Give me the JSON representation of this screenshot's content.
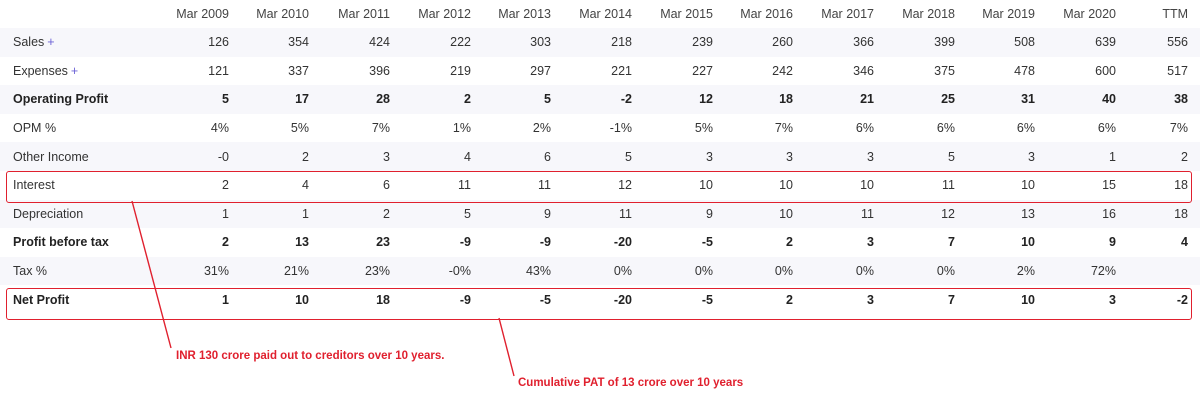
{
  "table": {
    "columns": [
      "",
      "Mar 2009",
      "Mar 2010",
      "Mar 2011",
      "Mar 2012",
      "Mar 2013",
      "Mar 2014",
      "Mar 2015",
      "Mar 2016",
      "Mar 2017",
      "Mar 2018",
      "Mar 2019",
      "Mar 2020",
      "TTM"
    ],
    "rows": [
      {
        "label": "Sales",
        "expandable": true,
        "bold": false,
        "values": [
          "126",
          "354",
          "424",
          "222",
          "303",
          "218",
          "239",
          "260",
          "366",
          "399",
          "508",
          "639",
          "556"
        ]
      },
      {
        "label": "Expenses",
        "expandable": true,
        "bold": false,
        "values": [
          "121",
          "337",
          "396",
          "219",
          "297",
          "221",
          "227",
          "242",
          "346",
          "375",
          "478",
          "600",
          "517"
        ]
      },
      {
        "label": "Operating Profit",
        "expandable": false,
        "bold": true,
        "values": [
          "5",
          "17",
          "28",
          "2",
          "5",
          "-2",
          "12",
          "18",
          "21",
          "25",
          "31",
          "40",
          "38"
        ]
      },
      {
        "label": "OPM %",
        "expandable": false,
        "bold": false,
        "values": [
          "4%",
          "5%",
          "7%",
          "1%",
          "2%",
          "-1%",
          "5%",
          "7%",
          "6%",
          "6%",
          "6%",
          "6%",
          "7%"
        ]
      },
      {
        "label": "Other Income",
        "expandable": false,
        "bold": false,
        "values": [
          "-0",
          "2",
          "3",
          "4",
          "6",
          "5",
          "3",
          "3",
          "3",
          "5",
          "3",
          "1",
          "2"
        ]
      },
      {
        "label": "Interest",
        "expandable": false,
        "bold": false,
        "values": [
          "2",
          "4",
          "6",
          "11",
          "11",
          "12",
          "10",
          "10",
          "10",
          "11",
          "10",
          "15",
          "18"
        ]
      },
      {
        "label": "Depreciation",
        "expandable": false,
        "bold": false,
        "values": [
          "1",
          "1",
          "2",
          "5",
          "9",
          "11",
          "9",
          "10",
          "11",
          "12",
          "13",
          "16",
          "18"
        ]
      },
      {
        "label": "Profit before tax",
        "expandable": false,
        "bold": true,
        "values": [
          "2",
          "13",
          "23",
          "-9",
          "-9",
          "-20",
          "-5",
          "2",
          "3",
          "7",
          "10",
          "9",
          "4"
        ]
      },
      {
        "label": "Tax %",
        "expandable": false,
        "bold": false,
        "values": [
          "31%",
          "21%",
          "23%",
          "-0%",
          "43%",
          "0%",
          "0%",
          "0%",
          "0%",
          "0%",
          "2%",
          "72%",
          ""
        ]
      },
      {
        "label": "Net Profit",
        "expandable": false,
        "bold": true,
        "values": [
          "1",
          "10",
          "18",
          "-9",
          "-5",
          "-20",
          "-5",
          "2",
          "3",
          "7",
          "10",
          "3",
          "-2"
        ]
      }
    ],
    "expand_symbol": "+"
  },
  "annotations": {
    "interest_note": "INR 130 crore paid out to creditors over 10 years.",
    "net_profit_note": "Cumulative PAT of 13 crore over 10 years",
    "color": "#e0202e"
  }
}
